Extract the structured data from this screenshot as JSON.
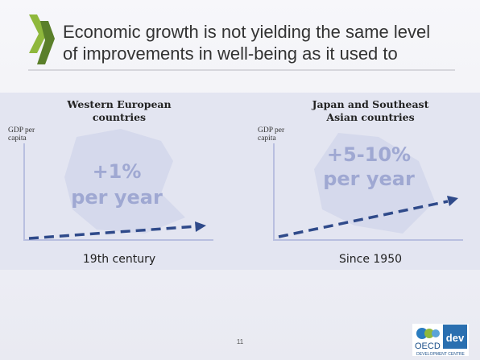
{
  "header": {
    "title": [
      "Economic growth is not yielding the same level",
      "of improvements in well-being as it used to"
    ]
  },
  "panels": [
    {
      "title": [
        "Western European",
        "countries"
      ],
      "axis_label": [
        "GDP per",
        "capita"
      ],
      "rate": [
        "+1%",
        "per year"
      ],
      "period": "19th century"
    },
    {
      "title": [
        "Japan and Southeast",
        "Asian countries"
      ],
      "axis_label": [
        "GDP per",
        "capita"
      ],
      "rate": [
        "+5-10%",
        "per year"
      ],
      "period": "Since 1950"
    }
  ],
  "footer": {
    "page_number": "11",
    "logo": {
      "name": "OECD",
      "suffix": "dev",
      "subtitle": "DEVELOPMENT CENTRE"
    }
  }
}
